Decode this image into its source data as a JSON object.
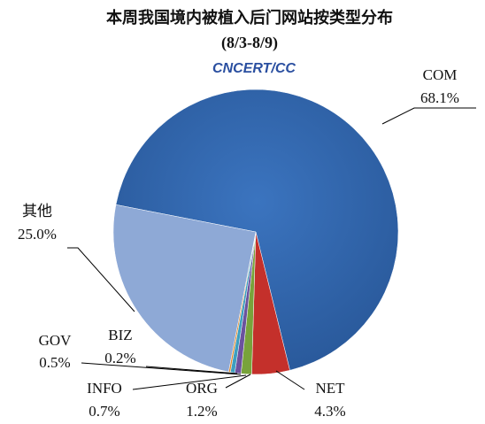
{
  "chart_data": {
    "type": "pie",
    "title": "本周我国境内被植入后门网站按类型分布",
    "subtitle": "(8/3-8/9)",
    "logo": "CNCERT/CC",
    "categories": [
      "COM",
      "NET",
      "ORG",
      "INFO",
      "GOV",
      "BIZ",
      "其他"
    ],
    "values": [
      68.1,
      4.3,
      1.2,
      0.7,
      0.5,
      0.2,
      25.0
    ],
    "value_labels": [
      "68.1%",
      "4.3%",
      "1.2%",
      "0.7%",
      "0.5%",
      "0.2%",
      "25.0%"
    ],
    "colors": [
      "#2f64ad",
      "#c4302b",
      "#78a33b",
      "#6b529e",
      "#3d9fc0",
      "#e28a2b",
      "#8ea9d6"
    ]
  }
}
